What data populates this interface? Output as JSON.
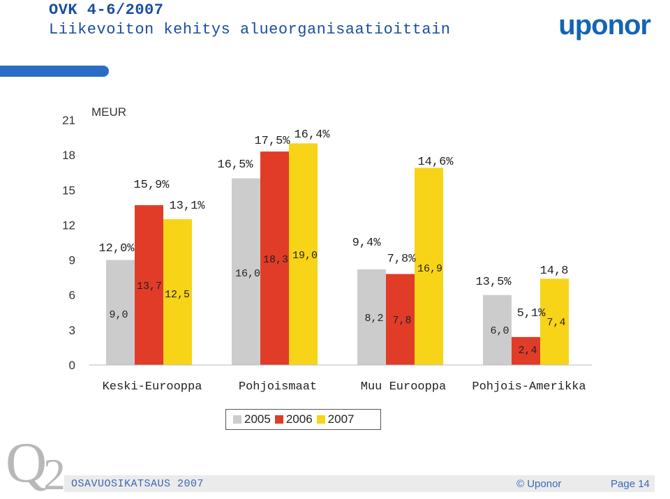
{
  "header": {
    "title_line1": "OVK 4-6/2007",
    "title_line2": "Liikevoiton kehitys alueorganisaatioittain",
    "logo": "uponor"
  },
  "chart_data": {
    "type": "bar",
    "unit_label": "MEUR",
    "ylim": [
      0,
      21
    ],
    "yticks": [
      "0",
      "3",
      "6",
      "9",
      "12",
      "15",
      "18",
      "21"
    ],
    "categories": [
      "Keski-Eurooppa",
      "Pohjoismaat",
      "Muu Eurooppa",
      "Pohjois-Amerikka"
    ],
    "series": [
      {
        "name": "2005",
        "color": "#cccccc",
        "values": [
          9.0,
          16.0,
          8.2,
          6.0
        ],
        "value_labels": [
          "9,0",
          "16,0",
          "8,2",
          "6,0"
        ],
        "margin_labels": [
          "12,0%",
          "16,5%",
          "9,4%",
          "13,5%"
        ]
      },
      {
        "name": "2006",
        "color": "#e03c28",
        "values": [
          13.7,
          18.3,
          7.8,
          2.4
        ],
        "value_labels": [
          "13,7",
          "18,3",
          "7,8",
          "2,4"
        ],
        "margin_labels": [
          "15,9%",
          "17,5%",
          "7,8%",
          "5,1%"
        ]
      },
      {
        "name": "2007",
        "color": "#f7d417",
        "values": [
          12.5,
          19.0,
          16.9,
          7.4
        ],
        "value_labels": [
          "12,5",
          "19,0",
          "16,9",
          "7,4"
        ],
        "margin_labels": [
          "13,1%",
          "16,4%",
          "14,6%",
          "14,8"
        ]
      }
    ]
  },
  "legend": {
    "items": [
      "2005",
      "2006",
      "2007"
    ],
    "colors": [
      "#cccccc",
      "#e03c28",
      "#f7d417"
    ]
  },
  "footer": {
    "logo_mark": "Q",
    "logo_number": "2",
    "report": "OSAVUOSIKATSAUS 2007",
    "copyright": "© Uponor",
    "page": "Page 14"
  }
}
